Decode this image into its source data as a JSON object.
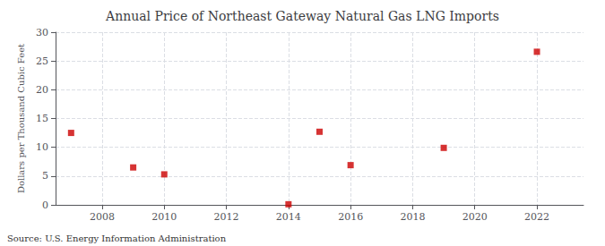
{
  "chart_data": {
    "type": "scatter",
    "title": "Annual Price of Northeast Gateway Natural Gas LNG Imports",
    "ylabel": "Dollars per Thousand Cubic Feet",
    "annotations": [
      "Source: U.S. Energy Information Administration"
    ],
    "x": [
      2007,
      2009,
      2010,
      2014,
      2015,
      2016,
      2019,
      2022
    ],
    "values": [
      12.5,
      6.5,
      5.3,
      0.1,
      12.7,
      6.9,
      9.9,
      26.6
    ],
    "color": "#cc0000",
    "marker": "square",
    "xlim": [
      2006.5,
      2023.5
    ],
    "xticks": [
      2008,
      2010,
      2012,
      2014,
      2016,
      2018,
      2020,
      2022
    ],
    "ylim": [
      0,
      30
    ],
    "yticks": [
      0,
      5,
      10,
      15,
      20,
      25,
      30
    ],
    "grid": true
  }
}
